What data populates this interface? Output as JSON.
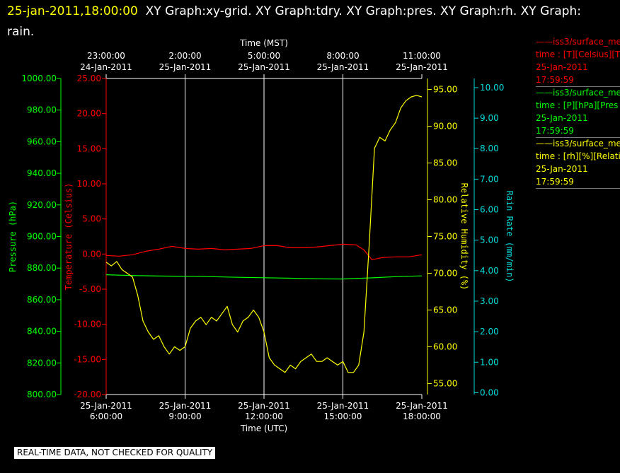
{
  "header": {
    "timestamp": "25-jan-2011,18:00:00",
    "graphs": "XY Graph:xy-grid.  XY Graph:tdry.  XY Graph:pres.  XY Graph:rh.  XY Graph: rain."
  },
  "colors": {
    "temperature": "#ff0000",
    "pressure": "#00ff00",
    "humidity": "#ffff00",
    "rain": "#00dddd",
    "frame": "#ffffff",
    "background": "#000000"
  },
  "chart_data": {
    "type": "line",
    "grid": "vertical lines at x ticks",
    "top_axis": {
      "label": "Time (MST)",
      "ticks": [
        {
          "time": "23:00:00",
          "date": "24-Jan-2011"
        },
        {
          "time": "2:00:00",
          "date": "25-Jan-2011"
        },
        {
          "time": "5:00:00",
          "date": "25-Jan-2011"
        },
        {
          "time": "8:00:00",
          "date": "25-Jan-2011"
        },
        {
          "time": "11:00:00",
          "date": "25-Jan-2011"
        }
      ]
    },
    "bottom_axis": {
      "label": "Time (UTC)",
      "xlim": [
        6,
        18
      ],
      "ticks": [
        {
          "value": 6,
          "date": "25-Jan-2011",
          "time": "6:00:00"
        },
        {
          "value": 9,
          "date": "25-Jan-2011",
          "time": "9:00:00"
        },
        {
          "value": 12,
          "date": "25-Jan-2011",
          "time": "12:00:00"
        },
        {
          "value": 15,
          "date": "25-Jan-2011",
          "time": "15:00:00"
        },
        {
          "value": 18,
          "date": "25-Jan-2011",
          "time": "18:00:00"
        }
      ]
    },
    "y_axes": {
      "pressure": {
        "label": "Pressure (hPa)",
        "ylim": [
          800,
          1000
        ],
        "ticks": [
          "800.00",
          "820.00",
          "840.00",
          "860.00",
          "880.00",
          "900.00",
          "920.00",
          "940.00",
          "960.00",
          "980.00",
          "1000.00"
        ]
      },
      "temperature": {
        "label": "Temperature (Celsius)",
        "ylim": [
          -20,
          25
        ],
        "ticks": [
          "-20.00",
          "-15.00",
          "-10.00",
          "-5.00",
          "0.00",
          "5.00",
          "10.00",
          "15.00",
          "20.00",
          "25.00"
        ]
      },
      "humidity": {
        "label": "Relative Humidity (%)",
        "ylim": [
          53.5,
          96.5
        ],
        "ticks": [
          "55.00",
          "60.00",
          "65.00",
          "70.00",
          "75.00",
          "80.00",
          "85.00",
          "90.00",
          "95.00"
        ]
      },
      "rain": {
        "label": "Rain Rate (mm/min)",
        "ylim": [
          -0.06,
          10.3
        ],
        "ticks": [
          "0.00",
          "1.00",
          "2.00",
          "3.00",
          "4.00",
          "5.00",
          "6.00",
          "7.00",
          "8.00",
          "9.00",
          "10.00"
        ]
      }
    },
    "series": [
      {
        "axis": "temperature",
        "x": [
          6,
          6.5,
          7,
          7.5,
          8,
          8.5,
          9,
          9.5,
          10,
          10.5,
          11,
          11.5,
          12,
          12.5,
          13,
          13.5,
          14,
          14.5,
          15,
          15.5,
          15.8,
          16.1,
          16.5,
          17,
          17.5,
          18
        ],
        "values": [
          -0.2,
          -0.3,
          -0.1,
          0.4,
          0.7,
          1.1,
          0.8,
          0.7,
          0.8,
          0.6,
          0.7,
          0.8,
          1.2,
          1.2,
          0.9,
          0.9,
          1.0,
          1.2,
          1.4,
          1.3,
          0.6,
          -0.8,
          -0.5,
          -0.4,
          -0.4,
          -0.1
        ]
      },
      {
        "axis": "pressure",
        "x": [
          6,
          7,
          8,
          9,
          10,
          11,
          12,
          13,
          14,
          15,
          16,
          17,
          18
        ],
        "values": [
          875.8,
          875.3,
          875.0,
          874.8,
          874.6,
          874.2,
          873.9,
          873.6,
          873.2,
          873.1,
          873.8,
          874.6,
          875.1
        ]
      },
      {
        "axis": "humidity",
        "x": [
          6,
          6.2,
          6.4,
          6.6,
          6.8,
          7.0,
          7.2,
          7.4,
          7.6,
          7.8,
          8.0,
          8.2,
          8.4,
          8.6,
          8.8,
          9.0,
          9.2,
          9.4,
          9.6,
          9.8,
          10.0,
          10.2,
          10.4,
          10.6,
          10.8,
          11.0,
          11.2,
          11.4,
          11.6,
          11.8,
          12.0,
          12.2,
          12.4,
          12.6,
          12.8,
          13.0,
          13.2,
          13.4,
          13.6,
          13.8,
          14.0,
          14.2,
          14.4,
          14.6,
          14.8,
          15.0,
          15.2,
          15.4,
          15.6,
          15.8,
          16.0,
          16.2,
          16.4,
          16.6,
          16.8,
          17.0,
          17.2,
          17.4,
          17.6,
          17.8,
          18.0
        ],
        "values": [
          71.5,
          71.0,
          71.6,
          70.5,
          70.0,
          69.5,
          67.0,
          63.5,
          62.0,
          61.0,
          61.5,
          60.0,
          59.0,
          60.0,
          59.5,
          60.0,
          62.5,
          63.5,
          64.0,
          63.0,
          64.0,
          63.5,
          64.5,
          65.5,
          63.0,
          62.0,
          63.5,
          64.0,
          65.0,
          64.0,
          62.0,
          58.5,
          57.5,
          57.0,
          56.5,
          57.5,
          57.0,
          58.0,
          58.5,
          59.0,
          58.0,
          58.0,
          58.5,
          58.0,
          57.5,
          58.0,
          56.5,
          56.5,
          57.5,
          62.0,
          74.0,
          87.0,
          88.5,
          88.0,
          89.5,
          90.5,
          92.5,
          93.5,
          94.0,
          94.2,
          94.0
        ]
      },
      {
        "axis": "rain",
        "x": [],
        "values": []
      }
    ]
  },
  "legend": [
    {
      "line1": "iss3/surface_me",
      "line2": "time : [T][Celsius][T",
      "line3": "25-Jan-2011",
      "line4": "17:59:59",
      "color": "#ff0000"
    },
    {
      "line1": "iss3/surface_me",
      "line2": "time : [P][hPa][Pres",
      "line3": "25-Jan-2011",
      "line4": "17:59:59",
      "color": "#00ff00"
    },
    {
      "line1": "iss3/surface_me",
      "line2": "time : [rh][%][Relati",
      "line3": "25-Jan-2011",
      "line4": "17:59:59",
      "color": "#ffff00"
    }
  ],
  "footer": "REAL-TIME DATA, NOT CHECKED FOR QUALITY"
}
